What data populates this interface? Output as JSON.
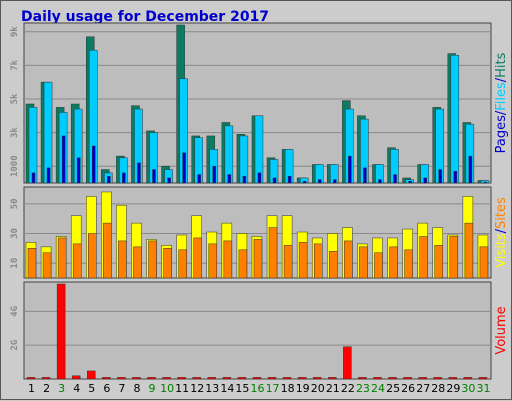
{
  "chart_data": {
    "type": "bar",
    "title": "Daily usage for December 2017",
    "categories": [
      "1",
      "2",
      "3",
      "4",
      "5",
      "6",
      "7",
      "8",
      "9",
      "10",
      "11",
      "12",
      "13",
      "14",
      "15",
      "16",
      "17",
      "18",
      "19",
      "20",
      "21",
      "22",
      "23",
      "24",
      "25",
      "26",
      "27",
      "28",
      "29",
      "30",
      "31"
    ],
    "weekend_days": [
      "3",
      "9",
      "10",
      "16",
      "17",
      "23",
      "24",
      "30",
      "31"
    ],
    "colors": {
      "weekday_label": "#000000",
      "weekend_label": "#007f00",
      "hits": "#0a7c64",
      "files": "#00ccff",
      "pages": "#0000cc",
      "visits": "#ffff00",
      "sites": "#ff8000",
      "volume": "#ff0000",
      "title": "#0000cc",
      "plot_bg": "#bdbdbd"
    },
    "panels": [
      {
        "name": "hits-files-pages",
        "ylim": [
          0,
          9400
        ],
        "yticks": [
          "1000",
          "3k",
          "5k",
          "7k",
          "9k"
        ],
        "ytick_values": [
          1000,
          3000,
          5000,
          7000,
          9000
        ],
        "series": [
          {
            "name": "Hits",
            "color_key": "hits",
            "values": [
              4700,
              6000,
              4500,
              4700,
              8700,
              800,
              1600,
              4600,
              3100,
              1000,
              9400,
              2800,
              2800,
              3600,
              2900,
              4000,
              1500,
              2000,
              300,
              1100,
              1100,
              4900,
              4000,
              1100,
              2100,
              300,
              1100,
              4500,
              7700,
              3600,
              150
            ]
          },
          {
            "name": "Files",
            "color_key": "files",
            "values": [
              4500,
              6000,
              4200,
              4400,
              7900,
              600,
              1500,
              4400,
              3000,
              800,
              6200,
              2700,
              2000,
              3400,
              2800,
              4000,
              1400,
              2000,
              300,
              1100,
              1100,
              4400,
              3800,
              1100,
              2000,
              200,
              1100,
              4400,
              7600,
              3500,
              150
            ]
          },
          {
            "name": "Pages",
            "color_key": "pages",
            "values": [
              600,
              900,
              2800,
              1500,
              2200,
              400,
              600,
              1200,
              800,
              300,
              1800,
              500,
              1000,
              500,
              400,
              600,
              300,
              400,
              100,
              200,
              200,
              1600,
              900,
              200,
              500,
              100,
              300,
              800,
              700,
              1600,
              50
            ]
          }
        ],
        "side_label": [
          "Pages",
          "/",
          "Files",
          "/",
          "Hits"
        ],
        "side_colors": [
          "pages",
          "title",
          "files",
          "title",
          "hits"
        ]
      },
      {
        "name": "visits-sites",
        "ylim": [
          0,
          60
        ],
        "yticks": [
          "10",
          "30",
          "50"
        ],
        "ytick_values": [
          10,
          30,
          50
        ],
        "series": [
          {
            "name": "Visits",
            "color_key": "visits",
            "values": [
              24,
              21,
              28,
              42,
              55,
              58,
              49,
              37,
              26,
              22,
              29,
              42,
              31,
              37,
              30,
              28,
              42,
              42,
              31,
              27,
              30,
              34,
              23,
              27,
              27,
              33,
              37,
              34,
              29,
              55,
              29
            ]
          },
          {
            "name": "Sites",
            "color_key": "sites",
            "values": [
              20,
              17,
              27,
              23,
              30,
              37,
              25,
              21,
              25,
              20,
              19,
              27,
              23,
              25,
              19,
              26,
              34,
              22,
              24,
              23,
              18,
              25,
              21,
              17,
              21,
              19,
              28,
              22,
              28,
              37,
              21
            ]
          }
        ],
        "side_label": [
          "Visits",
          "/",
          "Sites"
        ],
        "side_colors": [
          "visits",
          "title",
          "sites"
        ]
      },
      {
        "name": "volume",
        "ylim": [
          0,
          59
        ],
        "yticks": [
          "2G",
          "4G"
        ],
        "ytick_values": [
          21,
          42
        ],
        "series": [
          {
            "name": "Volume",
            "color_key": "volume",
            "values": [
              1,
              1,
              59,
              2,
              5,
              1,
              1,
              1,
              1,
              1,
              1,
              1,
              1,
              1,
              1,
              1,
              1,
              1,
              1,
              1,
              1,
              20,
              1,
              1,
              1,
              1,
              1,
              1,
              1,
              1,
              1
            ]
          }
        ],
        "side_label": [
          "Volume"
        ],
        "side_colors": [
          "volume"
        ]
      }
    ]
  }
}
